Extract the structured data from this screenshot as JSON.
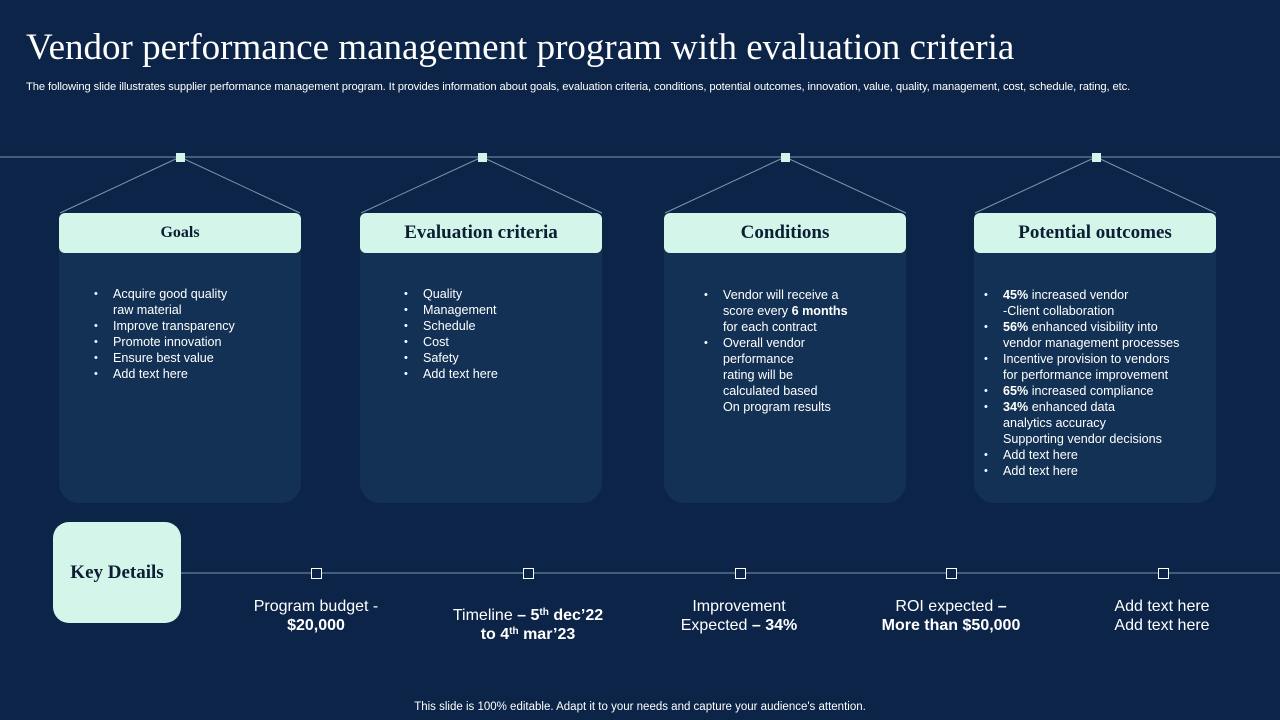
{
  "header": {
    "title": "Vendor performance management program with evaluation criteria",
    "subtitle": "The following slide illustrates supplier performance management program. It provides information about goals, evaluation criteria, conditions, potential outcomes, innovation, value, quality, management, cost, schedule, rating, etc."
  },
  "cards": [
    {
      "title": "Goals",
      "items": [
        "Acquire good quality",
        "raw material",
        "Improve  transparency",
        "Promote innovation",
        "Ensure best value",
        "Add text here"
      ]
    },
    {
      "title": "Evaluation criteria",
      "items": [
        "Quality",
        "Management",
        "Schedule",
        "Cost",
        "Safety",
        "Add text here"
      ]
    },
    {
      "title": "Conditions",
      "items": {
        "i0": "Vendor will receive a",
        "i1_pre": "score every ",
        "i1_bold": "6 months",
        "i2": "for each contract",
        "i3": "Overall  vendor",
        "i4": "performance",
        "i5": " rating will be",
        "i6": "calculated based",
        "i7": "On program results"
      }
    },
    {
      "title": "Potential outcomes",
      "items": {
        "o0_bold": "45%",
        "o0": " increased vendor",
        "o1": " -Client collaboration",
        "o2_bold": "56%",
        "o2": " enhanced visibility into",
        "o3": "vendor  management processes",
        "o4": "Incentive  provision to vendors",
        "o5": " for performance  improvement",
        "o6_bold": "65%",
        "o6": " increased compliance",
        "o7_bold": "34%",
        "o7": " enhanced data",
        "o8": "analytics accuracy",
        "o9": "Supporting vendor decisions",
        "o10": "Add text here",
        "o11": "Add text here"
      }
    }
  ],
  "key_details": {
    "label": "Key Details",
    "budget_line1": "Program budget -",
    "budget_line2": "$20,000",
    "timeline_pre": "Timeline ",
    "timeline_bold1": "– 5",
    "timeline_sup1": "th",
    "timeline_bold2": " dec’22",
    "timeline_bold3": "to 4",
    "timeline_sup2": "th",
    "timeline_bold4": " mar’23",
    "improvement_line1": "Improvement",
    "improvement_pre": "Expected ",
    "improvement_bold": "– 34%",
    "roi_pre": "ROI expected ",
    "roi_bold1": "–",
    "roi_bold2": "More than $50,000",
    "add_line1": "Add text here",
    "add_line2": "Add text here"
  },
  "footer": "This slide is 100% editable. Adapt it to your needs and capture your audience's attention.",
  "colors": {
    "background": "#0b2447",
    "card": "#133154",
    "accent": "#d3f5ea"
  }
}
